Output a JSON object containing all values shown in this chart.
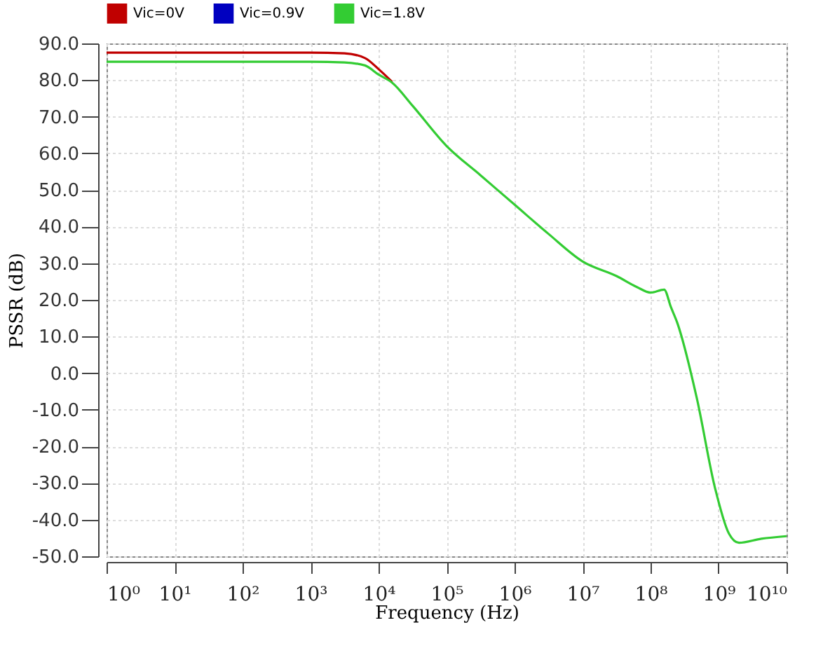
{
  "chart_data": {
    "type": "line",
    "xlabel": "Frequency (Hz)",
    "ylabel": "PSSR (dB)",
    "log": "x",
    "grid": true,
    "legend": "top left",
    "line_style": "solid",
    "marker": "none",
    "x": [
      1,
      10,
      100,
      1000,
      3162,
      6310,
      10000,
      15849,
      31623,
      100000,
      316228,
      1000000,
      3162278,
      10000000,
      31622777,
      63095734,
      100000000,
      158489319,
      199526231,
      245470892,
      478630092,
      891250938,
      1412537545,
      1995262315,
      4265795188,
      10000000000
    ],
    "xlim": [
      1,
      10000000000
    ],
    "xticks": [
      {
        "value": 1,
        "label": "10⁰"
      },
      {
        "value": 10,
        "label": "10¹"
      },
      {
        "value": 100,
        "label": "10²"
      },
      {
        "value": 1000,
        "label": "10³"
      },
      {
        "value": 10000,
        "label": "10⁴"
      },
      {
        "value": 100000,
        "label": "10⁵"
      },
      {
        "value": 1000000,
        "label": "10⁶"
      },
      {
        "value": 10000000,
        "label": "10⁷"
      },
      {
        "value": 100000000,
        "label": "10⁸"
      },
      {
        "value": 1000000000,
        "label": "10⁹"
      },
      {
        "value": 10000000000,
        "label": "10¹⁰"
      }
    ],
    "ylim": [
      -50,
      90
    ],
    "yticks": [
      {
        "value": 90,
        "label": "90.0"
      },
      {
        "value": 80,
        "label": "80.0"
      },
      {
        "value": 70,
        "label": "70.0"
      },
      {
        "value": 60,
        "label": "60.0"
      },
      {
        "value": 50,
        "label": "50.0"
      },
      {
        "value": 40,
        "label": "40.0"
      },
      {
        "value": 30,
        "label": "30.0"
      },
      {
        "value": 20,
        "label": "20.0"
      },
      {
        "value": 10,
        "label": "10.0"
      },
      {
        "value": 0,
        "label": "0.0"
      },
      {
        "value": -10,
        "label": "-10.0"
      },
      {
        "value": -20,
        "label": "-20.0"
      },
      {
        "value": -30,
        "label": "-30.0"
      },
      {
        "value": -40,
        "label": "-40.0"
      },
      {
        "value": -50,
        "label": "-50.0"
      }
    ],
    "series": [
      {
        "name": "Vic=0V",
        "color": "#c00000",
        "values": [
          87.5,
          87.5,
          87.5,
          87.5,
          87.3,
          86,
          83,
          79.5,
          null,
          null,
          null,
          null,
          null,
          null,
          null,
          null,
          null,
          null,
          null,
          null,
          null,
          null,
          null,
          null,
          null,
          null
        ]
      },
      {
        "name": "Vic=0.9V",
        "color": "#0000c0",
        "values": [
          null,
          null,
          null,
          null,
          null,
          null,
          null,
          null,
          null,
          null,
          null,
          null,
          null,
          null,
          null,
          null,
          null,
          null,
          null,
          null,
          null,
          null,
          null,
          null,
          null,
          null
        ]
      },
      {
        "name": "Vic=1.8V",
        "color": "#33cc33",
        "values": [
          85,
          85,
          85,
          85,
          84.8,
          84,
          81.5,
          79.3,
          73,
          62,
          54,
          46,
          38,
          30.5,
          26.5,
          23.5,
          22,
          22.8,
          18,
          13.9,
          -6.8,
          -31.5,
          -43.7,
          -46.3,
          -45.2,
          -44.5
        ]
      }
    ]
  }
}
